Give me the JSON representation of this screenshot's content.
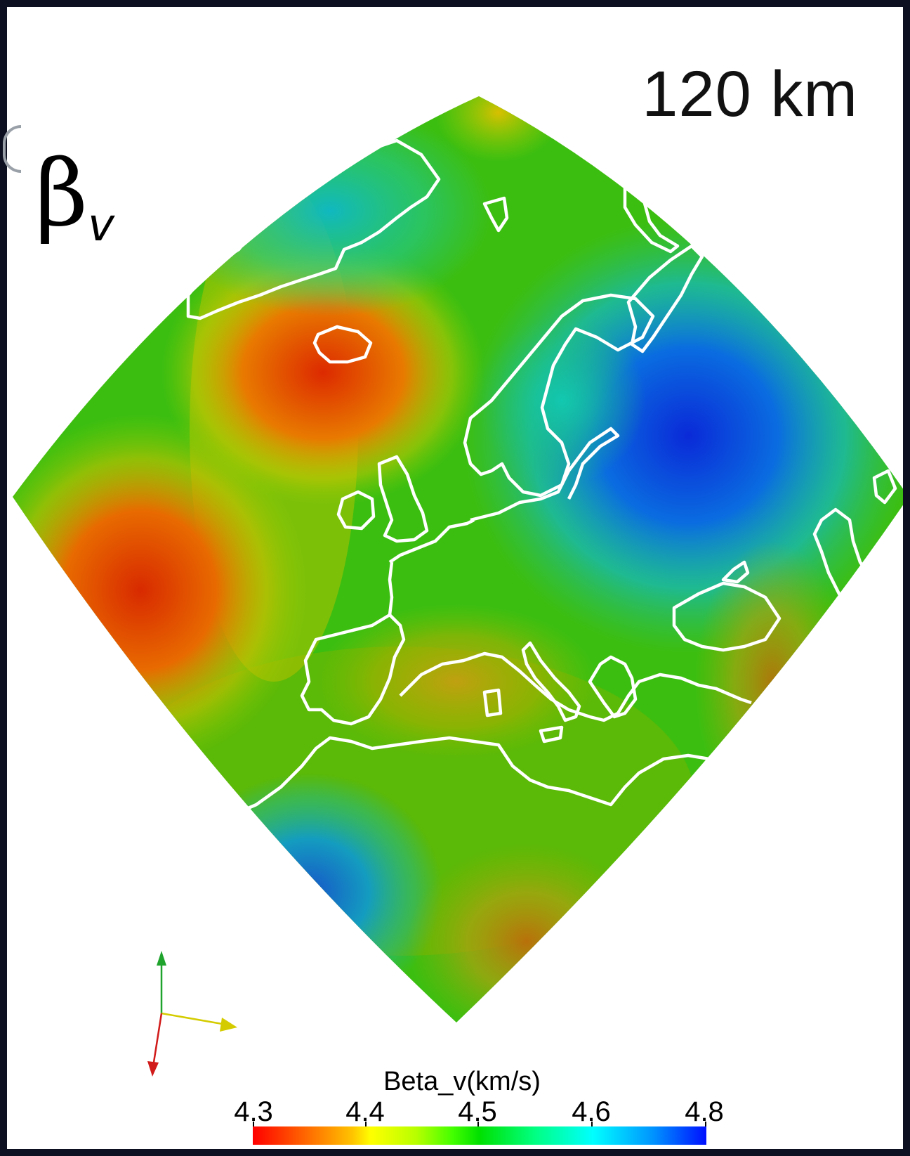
{
  "figure": {
    "depth_label": "120 km",
    "param_symbol": "β",
    "param_subscript": "v"
  },
  "colorbar": {
    "title": "Beta_v(km/s)",
    "ticks": [
      "4.3",
      "4.4",
      "4.5",
      "4.6",
      "4.8"
    ],
    "range": [
      4.3,
      4.8
    ],
    "colormap": [
      "#ff0000",
      "#ffff00",
      "#00e000",
      "#00ffff",
      "#0010ff"
    ]
  },
  "orientation_axes": {
    "colors": {
      "up": "#1fa32d",
      "right": "#d4cc00",
      "down": "#d11a1a"
    }
  },
  "colors": {
    "frame": "#0c1020",
    "coastline": "#ffffff"
  }
}
